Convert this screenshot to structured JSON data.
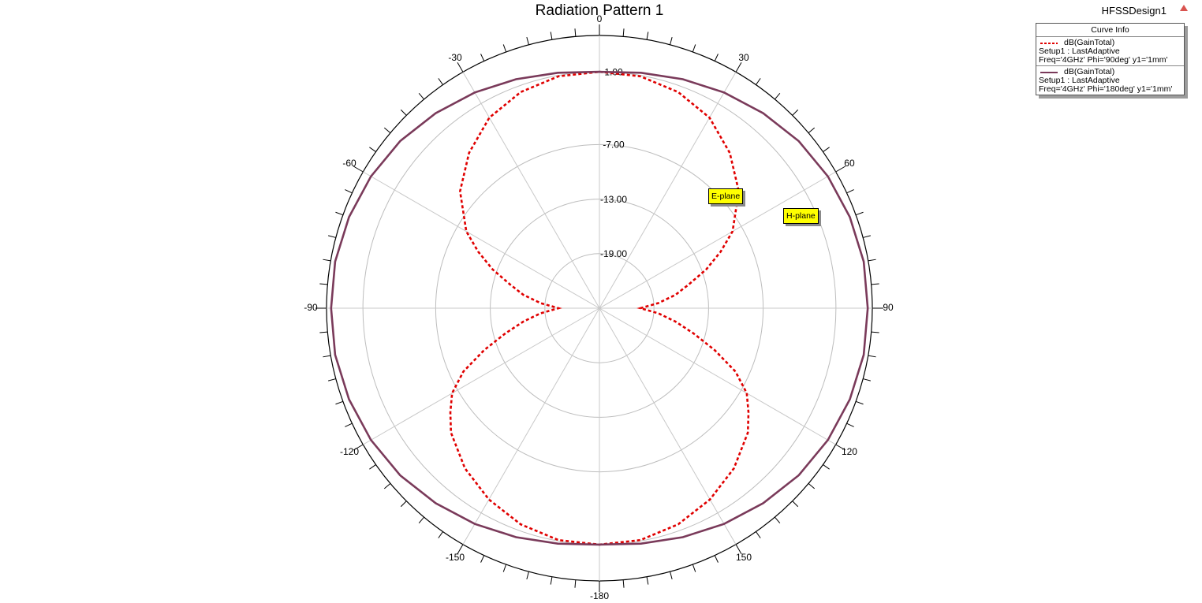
{
  "design_name": "HFSSDesign1",
  "chart_data": {
    "type": "polar",
    "title": "Radiation Pattern 1",
    "angle_ticks": [
      0,
      30,
      60,
      90,
      120,
      150,
      -180,
      -150,
      -120,
      -90,
      -60,
      -30
    ],
    "radial_ticks": [
      1.0,
      -7.0,
      -13.0,
      -19.0
    ],
    "radial_tick_labels": [
      "1.00",
      "-7.00",
      "-13.00",
      "-19.00"
    ],
    "radial_range": [
      -25.0,
      5.0
    ],
    "grid": true,
    "legend_title": "Curve Info",
    "legend_placement": "top-right",
    "series": [
      {
        "name": "dB(GainTotal)",
        "setup": "Setup1 : LastAdaptive",
        "params": "Freq='4GHz' Phi='90deg' y1='1mm'",
        "style": "dashed",
        "color": "#e00000",
        "annotation": "E-plane",
        "theta_deg": [
          0,
          10,
          20,
          30,
          40,
          50,
          60,
          65,
          70,
          75,
          80,
          85,
          90,
          95,
          100,
          105,
          110,
          115,
          120,
          125,
          130,
          140,
          150,
          160,
          170,
          180
        ],
        "gain_db": [
          1.0,
          0.9,
          0.3,
          -0.8,
          -2.7,
          -5.0,
          -8.1,
          -10.3,
          -12.5,
          -14.8,
          -16.5,
          -18.5,
          -20.5,
          -18.5,
          -16.5,
          -14.3,
          -11.5,
          -8.5,
          -6.3,
          -5.0,
          -3.7,
          -2.0,
          -0.7,
          0.3,
          0.9,
          1.0
        ]
      },
      {
        "name": "dB(GainTotal)",
        "setup": "Setup1 : LastAdaptive",
        "params": "Freq='4GHz' Phi='180deg' y1='1mm'",
        "style": "solid",
        "color": "#7a3a5a",
        "annotation": "H-plane",
        "theta_deg": [
          0,
          10,
          20,
          30,
          40,
          50,
          60,
          70,
          80,
          90,
          100,
          110,
          120,
          130,
          140,
          150,
          160,
          170,
          180
        ],
        "gain_db": [
          1.0,
          1.3,
          1.8,
          2.4,
          3.0,
          3.6,
          4.0,
          4.3,
          4.5,
          4.5,
          4.5,
          4.3,
          4.0,
          3.6,
          3.0,
          2.4,
          1.8,
          1.3,
          1.0
        ]
      }
    ]
  }
}
